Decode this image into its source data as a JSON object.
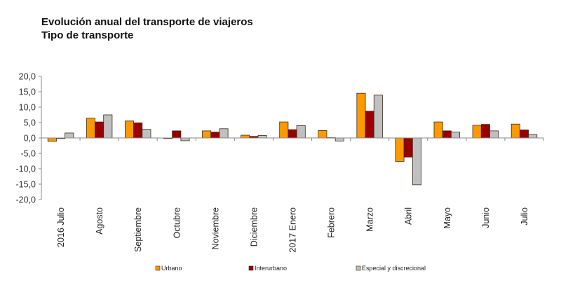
{
  "chart_data": {
    "type": "bar",
    "title": "Evolución anual del transporte de viajeros",
    "subtitle": "Tipo de transporte",
    "xlabel": "",
    "ylabel": "",
    "ylim": [
      -20,
      20
    ],
    "yticks": [
      20,
      15,
      10,
      5,
      0,
      -5,
      -10,
      -15,
      -20
    ],
    "ytick_labels": [
      "20,0",
      "15,0",
      "10,0",
      "5,0",
      "0,0",
      "-5,0",
      "-10,0",
      "-15,0",
      "-20,0"
    ],
    "grid": false,
    "legend_position": "bottom",
    "categories": [
      "2016 Julio",
      "Agosto",
      "Septiembre",
      "Octubre",
      "Noviembre",
      "Diciembre",
      "2017 Enero",
      "Febrero",
      "Marzo",
      "Abril",
      "Mayo",
      "Junio",
      "Julio"
    ],
    "series": [
      {
        "name": "Urbano",
        "color": "#FF9900",
        "values": [
          -1.1,
          6.4,
          5.5,
          -0.2,
          2.3,
          0.9,
          5.2,
          2.4,
          14.5,
          -7.6,
          5.2,
          4.1,
          4.5
        ]
      },
      {
        "name": "Interurbano",
        "color": "#990000",
        "values": [
          -0.2,
          5.2,
          4.9,
          2.3,
          1.9,
          0.5,
          2.7,
          0.1,
          8.7,
          -6.2,
          2.3,
          4.4,
          2.6
        ]
      },
      {
        "name": "Especial y discrecional",
        "color": "#C0C0C0",
        "values": [
          1.6,
          7.5,
          2.8,
          -0.9,
          3.0,
          0.8,
          4.0,
          -1.0,
          13.9,
          -15.2,
          1.9,
          2.3,
          1.1
        ]
      }
    ]
  }
}
